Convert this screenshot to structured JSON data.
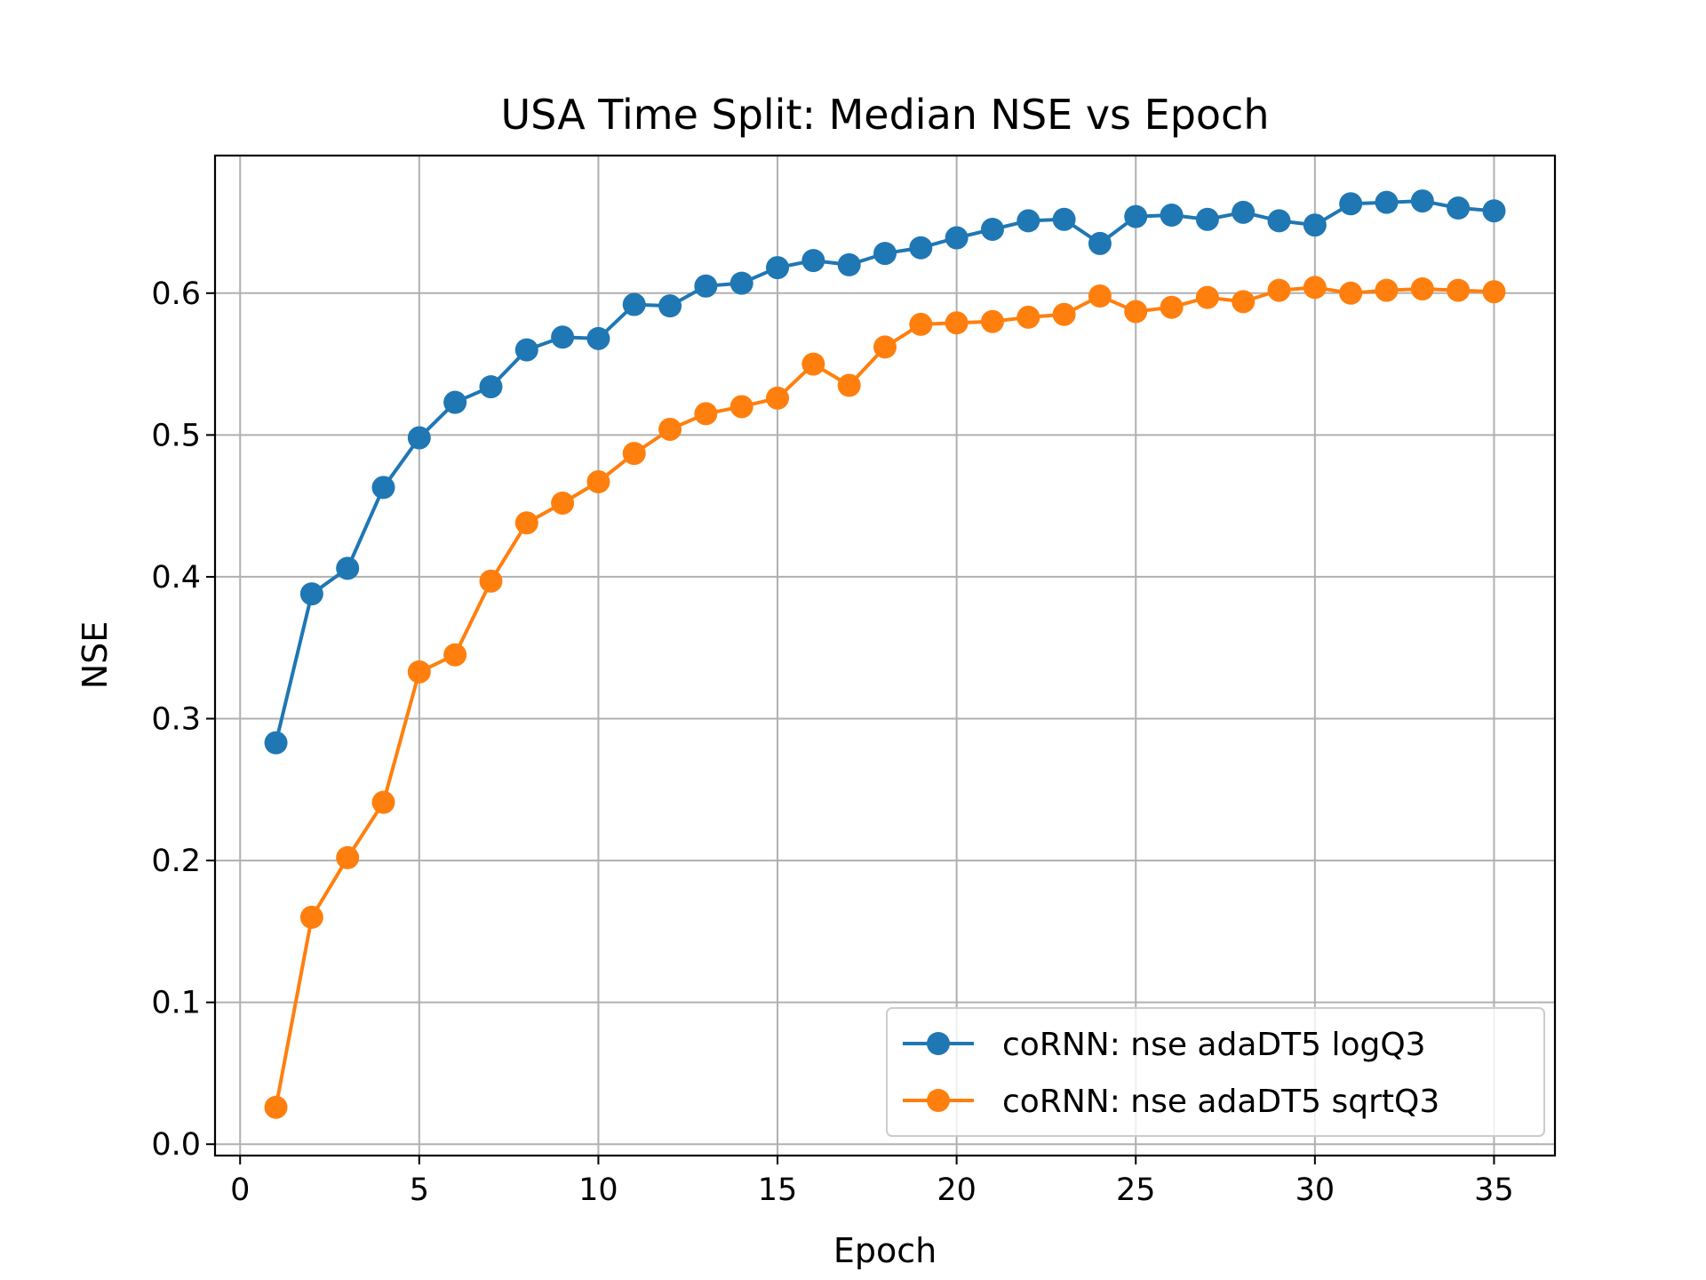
{
  "chart_data": {
    "type": "line",
    "title": "USA Time Split: Median NSE vs Epoch",
    "xlabel": "Epoch",
    "ylabel": "NSE",
    "xlim": [
      -0.7,
      36.7
    ],
    "ylim": [
      -0.008,
      0.697
    ],
    "xticks": [
      0,
      5,
      10,
      15,
      20,
      25,
      30,
      35
    ],
    "yticks": [
      0.0,
      0.1,
      0.2,
      0.3,
      0.4,
      0.5,
      0.6
    ],
    "ytick_labels": [
      "0.0",
      "0.1",
      "0.2",
      "0.3",
      "0.4",
      "0.5",
      "0.6"
    ],
    "grid": true,
    "legend_position": "lower-right",
    "x": [
      1,
      2,
      3,
      4,
      5,
      6,
      7,
      8,
      9,
      10,
      11,
      12,
      13,
      14,
      15,
      16,
      17,
      18,
      19,
      20,
      21,
      22,
      23,
      24,
      25,
      26,
      27,
      28,
      29,
      30,
      31,
      32,
      33,
      34,
      35
    ],
    "series": [
      {
        "name": "coRNN: nse adaDT5 logQ3",
        "color": "#1f77b4",
        "marker": "circle",
        "values": [
          0.283,
          0.388,
          0.406,
          0.463,
          0.498,
          0.523,
          0.534,
          0.56,
          0.569,
          0.568,
          0.592,
          0.591,
          0.605,
          0.607,
          0.618,
          0.623,
          0.62,
          0.628,
          0.632,
          0.639,
          0.645,
          0.651,
          0.652,
          0.635,
          0.654,
          0.655,
          0.652,
          0.657,
          0.651,
          0.648,
          0.663,
          0.664,
          0.665,
          0.66,
          0.658
        ]
      },
      {
        "name": "coRNN: nse adaDT5 sqrtQ3",
        "color": "#ff7f0e",
        "marker": "circle",
        "values": [
          0.026,
          0.16,
          0.202,
          0.241,
          0.333,
          0.345,
          0.397,
          0.438,
          0.452,
          0.467,
          0.487,
          0.504,
          0.515,
          0.52,
          0.526,
          0.55,
          0.535,
          0.562,
          0.578,
          0.579,
          0.58,
          0.583,
          0.585,
          0.598,
          0.587,
          0.59,
          0.597,
          0.594,
          0.602,
          0.604,
          0.6,
          0.602,
          0.603,
          0.602,
          0.601
        ]
      }
    ]
  }
}
